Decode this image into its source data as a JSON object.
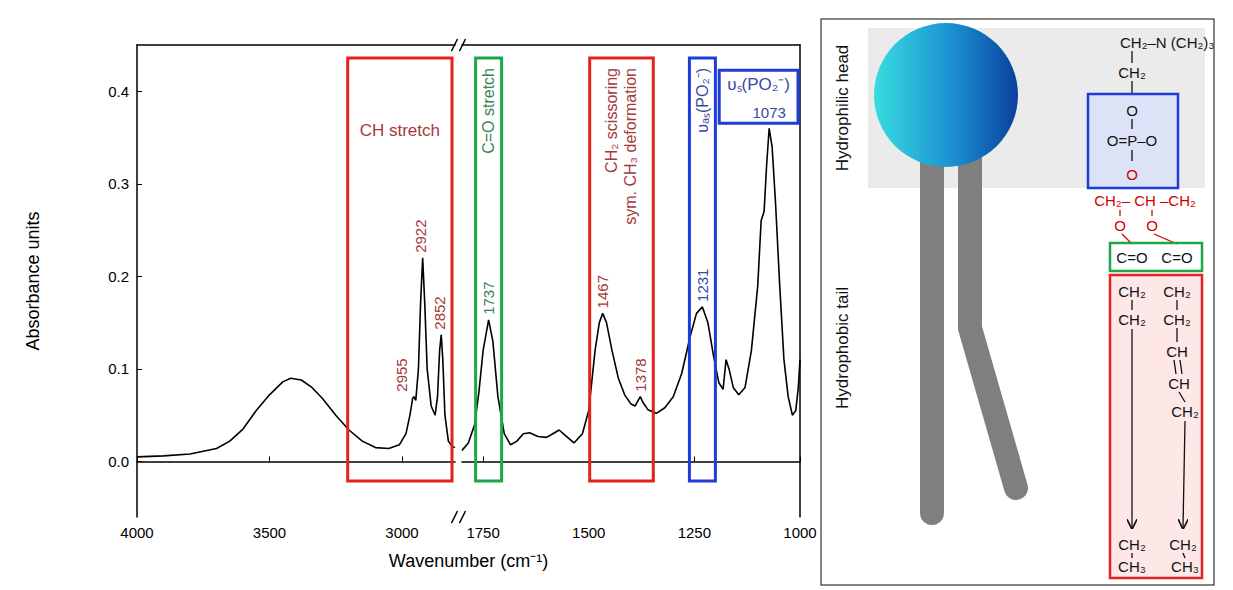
{
  "chart_data": {
    "type": "line",
    "x_label": "Wavenumber (cm⁻¹)",
    "y_label": "Absorbance units",
    "color": "#000000",
    "grid": false,
    "ylim": [
      -0.06,
      0.45
    ],
    "yticks": [
      {
        "value": 0,
        "label": "0.0"
      },
      0.1,
      0.2,
      0.3,
      0.4
    ],
    "panels": [
      {
        "xlim": [
          4000,
          2800
        ],
        "xticks": [
          4000,
          3500,
          3000
        ],
        "x": [
          4000,
          3900,
          3800,
          3700,
          3650,
          3600,
          3550,
          3500,
          3450,
          3420,
          3380,
          3340,
          3300,
          3250,
          3200,
          3150,
          3100,
          3050,
          3010,
          2985,
          2970,
          2960,
          2955,
          2948,
          2938,
          2930,
          2922,
          2914,
          2905,
          2890,
          2875,
          2866,
          2858,
          2852,
          2846,
          2838,
          2825,
          2810,
          2800
        ],
        "values": [
          0.005,
          0.006,
          0.008,
          0.014,
          0.022,
          0.035,
          0.055,
          0.072,
          0.086,
          0.09,
          0.088,
          0.08,
          0.068,
          0.05,
          0.034,
          0.022,
          0.015,
          0.014,
          0.018,
          0.03,
          0.05,
          0.068,
          0.07,
          0.066,
          0.1,
          0.17,
          0.22,
          0.17,
          0.1,
          0.06,
          0.05,
          0.07,
          0.12,
          0.137,
          0.11,
          0.05,
          0.022,
          0.016,
          0.015
        ]
      },
      {
        "xlim": [
          1800,
          1000
        ],
        "xticks": [
          1750,
          1500,
          1250,
          1000
        ],
        "x": [
          1800,
          1785,
          1770,
          1760,
          1750,
          1737,
          1727,
          1715,
          1700,
          1685,
          1670,
          1655,
          1640,
          1620,
          1600,
          1585,
          1570,
          1555,
          1535,
          1515,
          1500,
          1485,
          1475,
          1467,
          1458,
          1445,
          1430,
          1415,
          1400,
          1390,
          1383,
          1378,
          1372,
          1360,
          1340,
          1320,
          1300,
          1280,
          1260,
          1245,
          1231,
          1218,
          1205,
          1192,
          1182,
          1175,
          1168,
          1158,
          1145,
          1130,
          1115,
          1100,
          1092,
          1085,
          1079,
          1073,
          1066,
          1058,
          1048,
          1038,
          1028,
          1018,
          1010,
          1004,
          1000
        ],
        "values": [
          0.012,
          0.02,
          0.04,
          0.075,
          0.12,
          0.153,
          0.13,
          0.07,
          0.03,
          0.018,
          0.022,
          0.03,
          0.031,
          0.027,
          0.026,
          0.03,
          0.034,
          0.028,
          0.02,
          0.03,
          0.055,
          0.12,
          0.15,
          0.16,
          0.15,
          0.12,
          0.09,
          0.072,
          0.062,
          0.06,
          0.066,
          0.07,
          0.064,
          0.056,
          0.052,
          0.058,
          0.07,
          0.095,
          0.135,
          0.16,
          0.167,
          0.15,
          0.115,
          0.085,
          0.078,
          0.11,
          0.1,
          0.08,
          0.072,
          0.08,
          0.12,
          0.19,
          0.26,
          0.27,
          0.32,
          0.36,
          0.34,
          0.28,
          0.19,
          0.11,
          0.07,
          0.05,
          0.055,
          0.08,
          0.11
        ]
      }
    ],
    "annotations": [
      {
        "label": [
          "CH stretch"
        ],
        "peaks": [
          2955,
          2922,
          2852
        ],
        "color": "#e3211f"
      },
      {
        "label": [
          "C=O stretch"
        ],
        "peaks": [
          1737
        ],
        "color": "#1fa64a"
      },
      {
        "label": [
          "CH₂ scissoring",
          "sym. CH₃ deformation"
        ],
        "peaks": [
          1467,
          1378
        ],
        "color": "#e3211f"
      },
      {
        "label": [
          "υₐₛ(PO₂⁻)"
        ],
        "peaks": [
          1231
        ],
        "color": "#1e3cd8"
      },
      {
        "label": [
          "υₛ(PO₂⁻)"
        ],
        "peaks": [
          1073
        ],
        "color": "#1e3cd8"
      }
    ]
  },
  "diagram": {
    "head_label": "Hydrophilic head",
    "tail_label": "Hydrophobic tail",
    "choline": [
      "CH₂–N (CH₂)₃",
      "CH₂"
    ],
    "phosphate": [
      "O",
      "O=P–O",
      "O"
    ],
    "glycerol": "CH₂– CH –CH₂",
    "ester_oxygens": [
      "O",
      "O"
    ],
    "carbonyls": [
      "C=O",
      "C=O"
    ],
    "chains": [
      [
        "CH₂",
        "CH₂",
        "CH₂",
        "CH₃"
      ],
      [
        "CH₂",
        "CH₂",
        "CH",
        "CH",
        "CH₂",
        "CH₂",
        "CH₃"
      ]
    ]
  }
}
